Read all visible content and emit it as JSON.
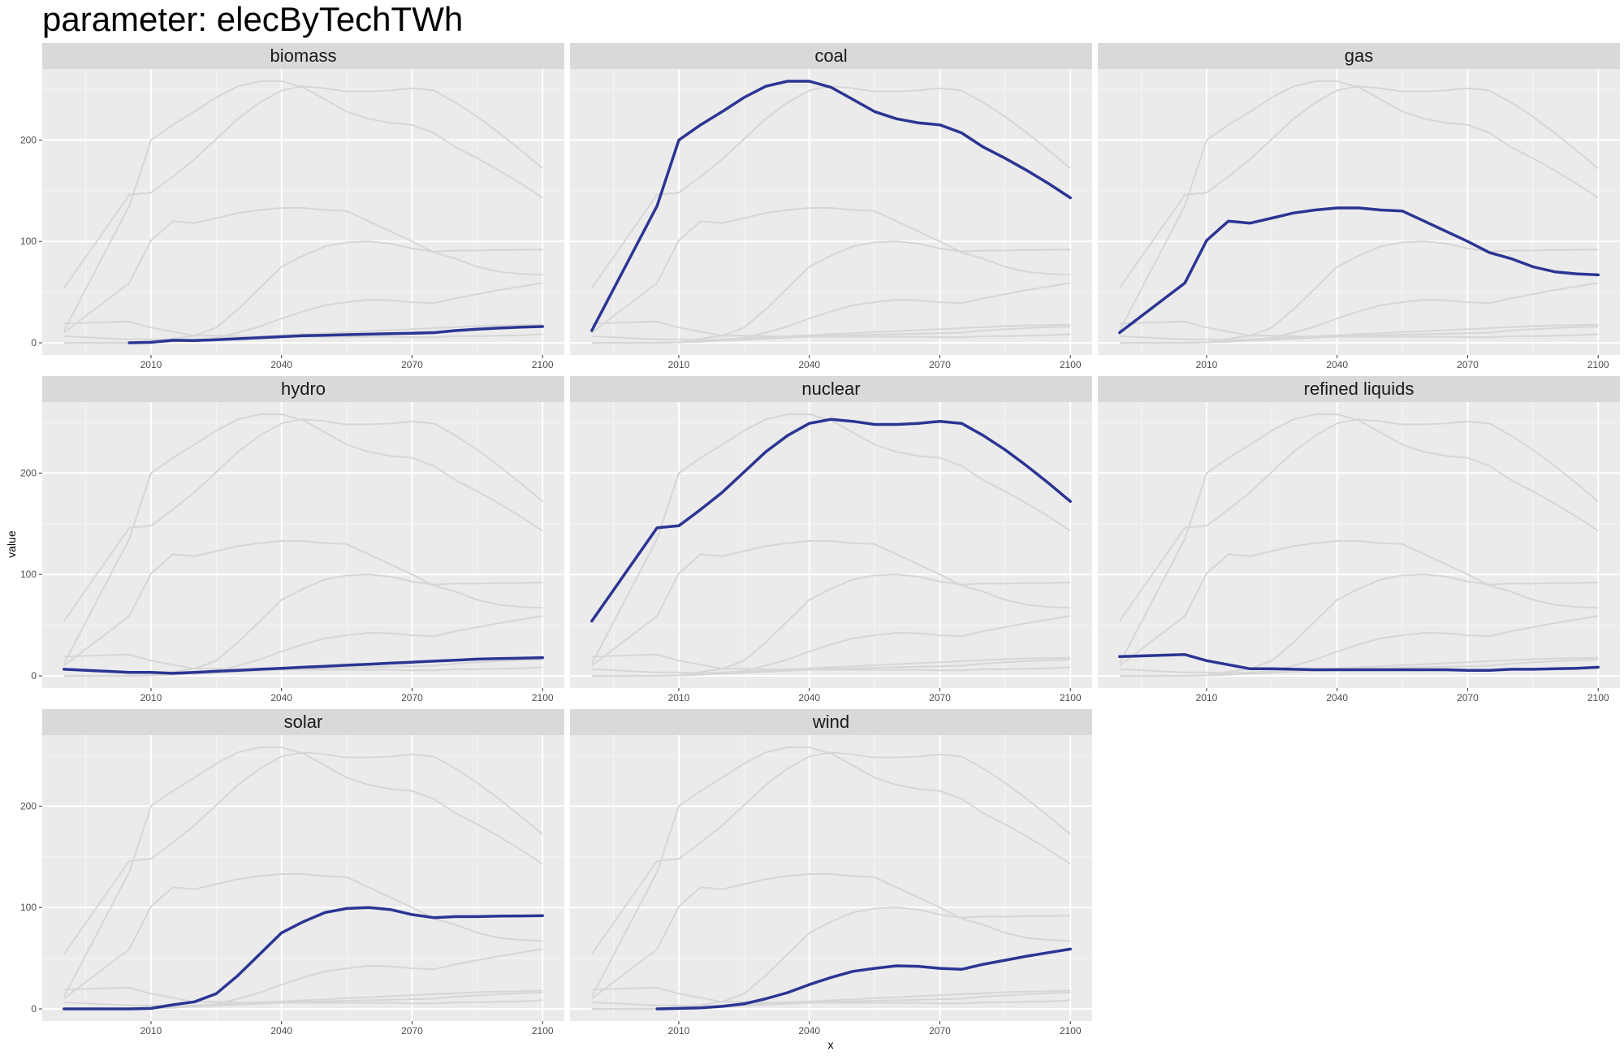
{
  "chart_data": {
    "type": "line",
    "title": "parameter: elecByTechTWh",
    "xlabel": "x",
    "ylabel": "value",
    "xlim": [
      1985,
      2105
    ],
    "ylim": [
      -12,
      270
    ],
    "x_ticks": [
      2010,
      2040,
      2070,
      2100
    ],
    "y_ticks": [
      0,
      100,
      200
    ],
    "layout": "facet-wrap 3 columns",
    "background_series_color": "#d6d6d6",
    "highlight_color": "#2b3593",
    "panel_bg": "#ebebeb",
    "strip_bg": "#d9d9d9",
    "x": [
      1990,
      2005,
      2010,
      2015,
      2020,
      2025,
      2030,
      2035,
      2040,
      2045,
      2050,
      2055,
      2060,
      2065,
      2070,
      2075,
      2080,
      2085,
      2090,
      2095,
      2100
    ],
    "series": [
      {
        "name": "biomass",
        "values": [
          null,
          0,
          0.5,
          2.5,
          2.3,
          3,
          4,
          5,
          6,
          7,
          7.5,
          8,
          8.5,
          9,
          9.5,
          10,
          12,
          13.5,
          14.5,
          15.5,
          16
        ]
      },
      {
        "name": "coal",
        "values": [
          12,
          135,
          200,
          215,
          228,
          242,
          253,
          258,
          258,
          252,
          240,
          228,
          221,
          217,
          215,
          207,
          193,
          182,
          170,
          157,
          143
        ]
      },
      {
        "name": "gas",
        "values": [
          10,
          59,
          101,
          120,
          118,
          123,
          128,
          131,
          133,
          133,
          131,
          130,
          120,
          110,
          100,
          89,
          83,
          75,
          70,
          68,
          67
        ]
      },
      {
        "name": "hydro",
        "values": [
          6.5,
          3.5,
          3.5,
          2.5,
          3.5,
          4.5,
          5.5,
          6.5,
          7.5,
          8.5,
          9.5,
          10.5,
          11.5,
          12.5,
          13.5,
          14.5,
          15.5,
          16.5,
          17,
          17.5,
          18
        ]
      },
      {
        "name": "nuclear",
        "values": [
          54,
          146,
          148,
          164,
          181,
          201,
          221,
          237,
          249,
          253,
          251,
          248,
          248,
          249,
          251,
          249,
          237,
          223,
          207,
          190,
          172
        ]
      },
      {
        "name": "refined liquids",
        "values": [
          19,
          21,
          15,
          11,
          7,
          7,
          6.5,
          6,
          6,
          6,
          6,
          6,
          6,
          6,
          5.5,
          5.5,
          6.5,
          6.5,
          7,
          7.5,
          8.5
        ]
      },
      {
        "name": "solar",
        "values": [
          0,
          0,
          0.5,
          4,
          7,
          15,
          33,
          54,
          75,
          86,
          95,
          99,
          100,
          98,
          93,
          90,
          91,
          91,
          91.5,
          91.7,
          92
        ]
      },
      {
        "name": "wind",
        "values": [
          null,
          0,
          0.5,
          1,
          2.5,
          5,
          10,
          16,
          24,
          31,
          37,
          40,
          42.5,
          42,
          40,
          39,
          44,
          48,
          52,
          55.5,
          59
        ]
      }
    ]
  }
}
